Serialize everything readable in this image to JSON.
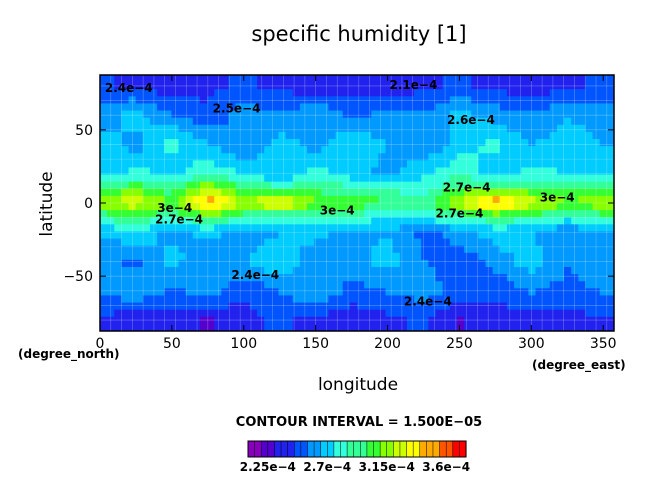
{
  "chart_data": {
    "type": "heatmap",
    "title": "specific humidity [1]",
    "xlabel": "longitude",
    "ylabel": "latitude",
    "x_units": "(degree_east)",
    "y_units": "(degree_north)",
    "xlim": [
      0,
      357.5
    ],
    "ylim": [
      -87.5,
      87.5
    ],
    "x_ticks": [
      0,
      50,
      100,
      150,
      200,
      250,
      300,
      350
    ],
    "x_tick_labels": [
      "0",
      "50",
      "100",
      "150",
      "200",
      "250",
      "300",
      "350"
    ],
    "y_ticks": [
      50,
      0,
      -50
    ],
    "y_tick_labels": [
      "50",
      "0",
      "−50"
    ],
    "grid": true,
    "contour_interval_text": "CONTOUR INTERVAL = 1.500E−05",
    "contour_interval": 1.5e-05,
    "vmin": 0.00021,
    "vmax": 0.000375,
    "colorbar_ticks": [
      0.000225,
      0.00027,
      0.000315,
      0.00036
    ],
    "colorbar_tick_labels": [
      "2.25e−4",
      "2.7e−4",
      "3.15e−4",
      "3.6e−4"
    ],
    "colormap": [
      "#8800bb",
      "#5500cc",
      "#2222ee",
      "#0055ff",
      "#0099ff",
      "#00ccff",
      "#33ffdd",
      "#33ff99",
      "#33ff33",
      "#88ff00",
      "#ccff00",
      "#ffff00",
      "#ffaa00",
      "#ff5500",
      "#ff0000"
    ],
    "lat": [
      80,
      60,
      40,
      20,
      10,
      0,
      -10,
      -20,
      -40,
      -60,
      -80
    ],
    "lon": [
      0,
      25,
      50,
      75,
      100,
      125,
      150,
      175,
      200,
      225,
      250,
      275,
      300,
      325,
      350
    ],
    "values": [
      [
        0.000245,
        0.00024,
        0.000235,
        0.00024,
        0.000245,
        0.00024,
        0.000235,
        0.00024,
        0.000235,
        0.00024,
        0.000245,
        0.00024,
        0.000235,
        0.00024,
        0.000245
      ],
      [
        0.00026,
        0.00027,
        0.000255,
        0.000245,
        0.00026,
        0.000255,
        0.000265,
        0.00025,
        0.00026,
        0.000255,
        0.00027,
        0.00026,
        0.000255,
        0.000265,
        0.00026
      ],
      [
        0.00027,
        0.00026,
        0.00028,
        0.000265,
        0.000255,
        0.00027,
        0.00026,
        0.000275,
        0.000265,
        0.000255,
        0.00027,
        0.00028,
        0.000265,
        0.00027,
        0.000265
      ],
      [
        0.00027,
        0.00028,
        0.00027,
        0.000285,
        0.000275,
        0.000265,
        0.00028,
        0.00027,
        0.00026,
        0.000275,
        0.000285,
        0.00027,
        0.00028,
        0.000275,
        0.00027
      ],
      [
        0.0003,
        0.000305,
        0.00029,
        0.00032,
        0.0003,
        0.00029,
        0.000295,
        0.00029,
        0.000285,
        0.00028,
        0.0003,
        0.000305,
        0.0003,
        0.000295,
        0.0003
      ],
      [
        0.000315,
        0.00033,
        0.00031,
        0.000355,
        0.00032,
        0.00034,
        0.00031,
        0.000305,
        0.0003,
        0.000295,
        0.000325,
        0.000355,
        0.00033,
        0.00031,
        0.00032
      ],
      [
        0.00029,
        0.000295,
        0.000285,
        0.0003,
        0.00029,
        0.00028,
        0.00029,
        0.000285,
        0.000275,
        0.00028,
        0.000285,
        0.000295,
        0.00029,
        0.00028,
        0.00029
      ],
      [
        0.000265,
        0.000275,
        0.00026,
        0.00027,
        0.000255,
        0.000265,
        0.00027,
        0.00026,
        0.000265,
        0.00025,
        0.00026,
        0.00027,
        0.000265,
        0.000255,
        0.000265
      ],
      [
        0.00026,
        0.00025,
        0.00027,
        0.000255,
        0.000265,
        0.000275,
        0.000255,
        0.00026,
        0.00027,
        0.000255,
        0.000245,
        0.00026,
        0.00027,
        0.000255,
        0.00026
      ],
      [
        0.000255,
        0.000265,
        0.00025,
        0.00026,
        0.000245,
        0.000255,
        0.000265,
        0.00025,
        0.000255,
        0.00026,
        0.00025,
        0.000245,
        0.000255,
        0.00025,
        0.000255
      ],
      [
        0.00024,
        0.000235,
        0.00024,
        0.00023,
        0.00024,
        0.000245,
        0.00024,
        0.000235,
        0.00024,
        0.000245,
        0.00023,
        0.00024,
        0.000235,
        0.00024,
        0.00024
      ]
    ],
    "contour_labels": [
      {
        "text": "2.4e−4",
        "lon": 20,
        "lat": 76
      },
      {
        "text": "2.1e−4",
        "lon": 218,
        "lat": 78
      },
      {
        "text": "2.5e−4",
        "lon": 95,
        "lat": 62
      },
      {
        "text": "2.6e−4",
        "lon": 258,
        "lat": 54
      },
      {
        "text": "2.7e−4",
        "lon": 255,
        "lat": 8
      },
      {
        "text": "3e−4",
        "lon": 52,
        "lat": -6
      },
      {
        "text": "2.7e−4",
        "lon": 55,
        "lat": -14
      },
      {
        "text": "3e−4",
        "lon": 165,
        "lat": -8
      },
      {
        "text": "2.7e−4",
        "lon": 250,
        "lat": -10
      },
      {
        "text": "3e−4",
        "lon": 318,
        "lat": 1
      },
      {
        "text": "2.4e−4",
        "lon": 108,
        "lat": -52
      },
      {
        "text": "2.4e−4",
        "lon": 228,
        "lat": -70
      }
    ]
  }
}
